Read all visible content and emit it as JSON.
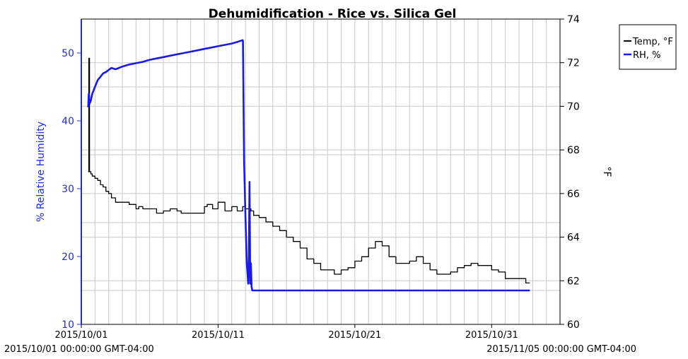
{
  "chart_data": {
    "type": "line",
    "title": "Dehumidification - Rice vs. Silica Gel",
    "y_left_label": "% Relative Humidity",
    "y_right_label": "°F",
    "y_left_range": [
      10,
      55
    ],
    "y_left_ticks": [
      "10",
      "20",
      "30",
      "40",
      "50"
    ],
    "y_right_range": [
      60,
      74
    ],
    "y_right_ticks": [
      "60",
      "62",
      "64",
      "66",
      "68",
      "70",
      "72",
      "74"
    ],
    "x_range": [
      "2015-10-01",
      "2015-11-05"
    ],
    "x_ticks": [
      "2015/10/01",
      "2015/10/11",
      "2015/10/21",
      "2015/10/31"
    ],
    "x_range_start_label": "2015/10/01 00:00:00 GMT-04:00",
    "x_range_end_label": "2015/11/05 00:00:00 GMT-04:00",
    "grid": true,
    "legend_position": "top-right",
    "colors": {
      "temp": "#000000",
      "rh": "#1a1ae0",
      "axis_left": "#1f2fd6",
      "grid": "#c8c8c8"
    },
    "series": [
      {
        "name": "Temp, °F",
        "axis": "right",
        "x": [
          0.5,
          0.55,
          0.6,
          0.7,
          0.8,
          1.0,
          1.2,
          1.4,
          1.6,
          1.8,
          2.0,
          2.2,
          2.5,
          3.0,
          3.5,
          4.0,
          4.2,
          4.5,
          5.0,
          5.5,
          6.0,
          6.5,
          7.0,
          7.3,
          7.6,
          8.0,
          8.5,
          9.0,
          9.2,
          9.6,
          10.0,
          10.5,
          10.8,
          11.0,
          11.4,
          11.8,
          12.0,
          12.4,
          12.6,
          13.0,
          13.5,
          14.0,
          14.5,
          15.0,
          15.5,
          16.0,
          16.5,
          17.0,
          17.5,
          18.0,
          18.5,
          19.0,
          19.5,
          20.0,
          20.5,
          21.0,
          21.5,
          22.0,
          22.5,
          23.0,
          23.5,
          24.0,
          24.5,
          25.0,
          25.5,
          26.0,
          26.5,
          27.0,
          27.5,
          28.0,
          28.5,
          29.0,
          29.5,
          30.0,
          30.5,
          31.0,
          31.5,
          32.0,
          32.5,
          32.8
        ],
        "y": [
          67.0,
          72.2,
          67.0,
          66.9,
          66.8,
          66.7,
          66.6,
          66.4,
          66.3,
          66.1,
          66.0,
          65.8,
          65.6,
          65.6,
          65.5,
          65.3,
          65.4,
          65.3,
          65.3,
          65.1,
          65.2,
          65.3,
          65.2,
          65.1,
          65.1,
          65.1,
          65.1,
          65.4,
          65.5,
          65.3,
          65.6,
          65.2,
          65.2,
          65.4,
          65.2,
          65.4,
          65.3,
          65.2,
          65.0,
          64.9,
          64.7,
          64.5,
          64.3,
          64.0,
          63.8,
          63.5,
          63.0,
          62.8,
          62.5,
          62.5,
          62.3,
          62.5,
          62.6,
          62.9,
          63.1,
          63.5,
          63.8,
          63.6,
          63.1,
          62.8,
          62.8,
          62.9,
          63.1,
          62.8,
          62.5,
          62.3,
          62.3,
          62.4,
          62.6,
          62.7,
          62.8,
          62.7,
          62.7,
          62.5,
          62.4,
          62.1,
          62.1,
          62.1,
          61.9,
          61.9
        ]
      },
      {
        "name": "RH, %",
        "axis": "left",
        "x": [
          0.5,
          0.55,
          0.6,
          0.7,
          0.8,
          1.0,
          1.2,
          1.4,
          1.6,
          1.8,
          2.0,
          2.2,
          2.5,
          3.0,
          3.5,
          4.0,
          4.5,
          5.0,
          5.5,
          6.0,
          6.5,
          7.0,
          7.5,
          8.0,
          8.5,
          9.0,
          9.5,
          10.0,
          10.5,
          11.0,
          11.5,
          11.8,
          11.82,
          11.9,
          12.0,
          12.1,
          12.2,
          12.25,
          12.3,
          12.35,
          12.4,
          12.45,
          12.5,
          12.55,
          12.6,
          13.0,
          14.0,
          16.0,
          18.0,
          20.0,
          22.0,
          24.0,
          26.0,
          28.0,
          30.0,
          32.0,
          32.8
        ],
        "y": [
          42.0,
          44.0,
          42.5,
          43.0,
          44.0,
          45.0,
          46.0,
          46.5,
          47.0,
          47.2,
          47.5,
          47.8,
          47.6,
          48.0,
          48.3,
          48.5,
          48.7,
          49.0,
          49.2,
          49.4,
          49.6,
          49.8,
          50.0,
          50.2,
          50.4,
          50.6,
          50.8,
          51.0,
          51.2,
          51.4,
          51.7,
          51.9,
          51.7,
          34.0,
          26.0,
          19.0,
          16.0,
          20.0,
          31.0,
          16.0,
          19.0,
          15.5,
          15.0,
          15.0,
          15.0,
          15.0,
          15.0,
          15.0,
          15.0,
          15.0,
          15.0,
          15.0,
          15.0,
          15.0,
          15.0,
          15.0,
          15.0
        ]
      }
    ]
  }
}
